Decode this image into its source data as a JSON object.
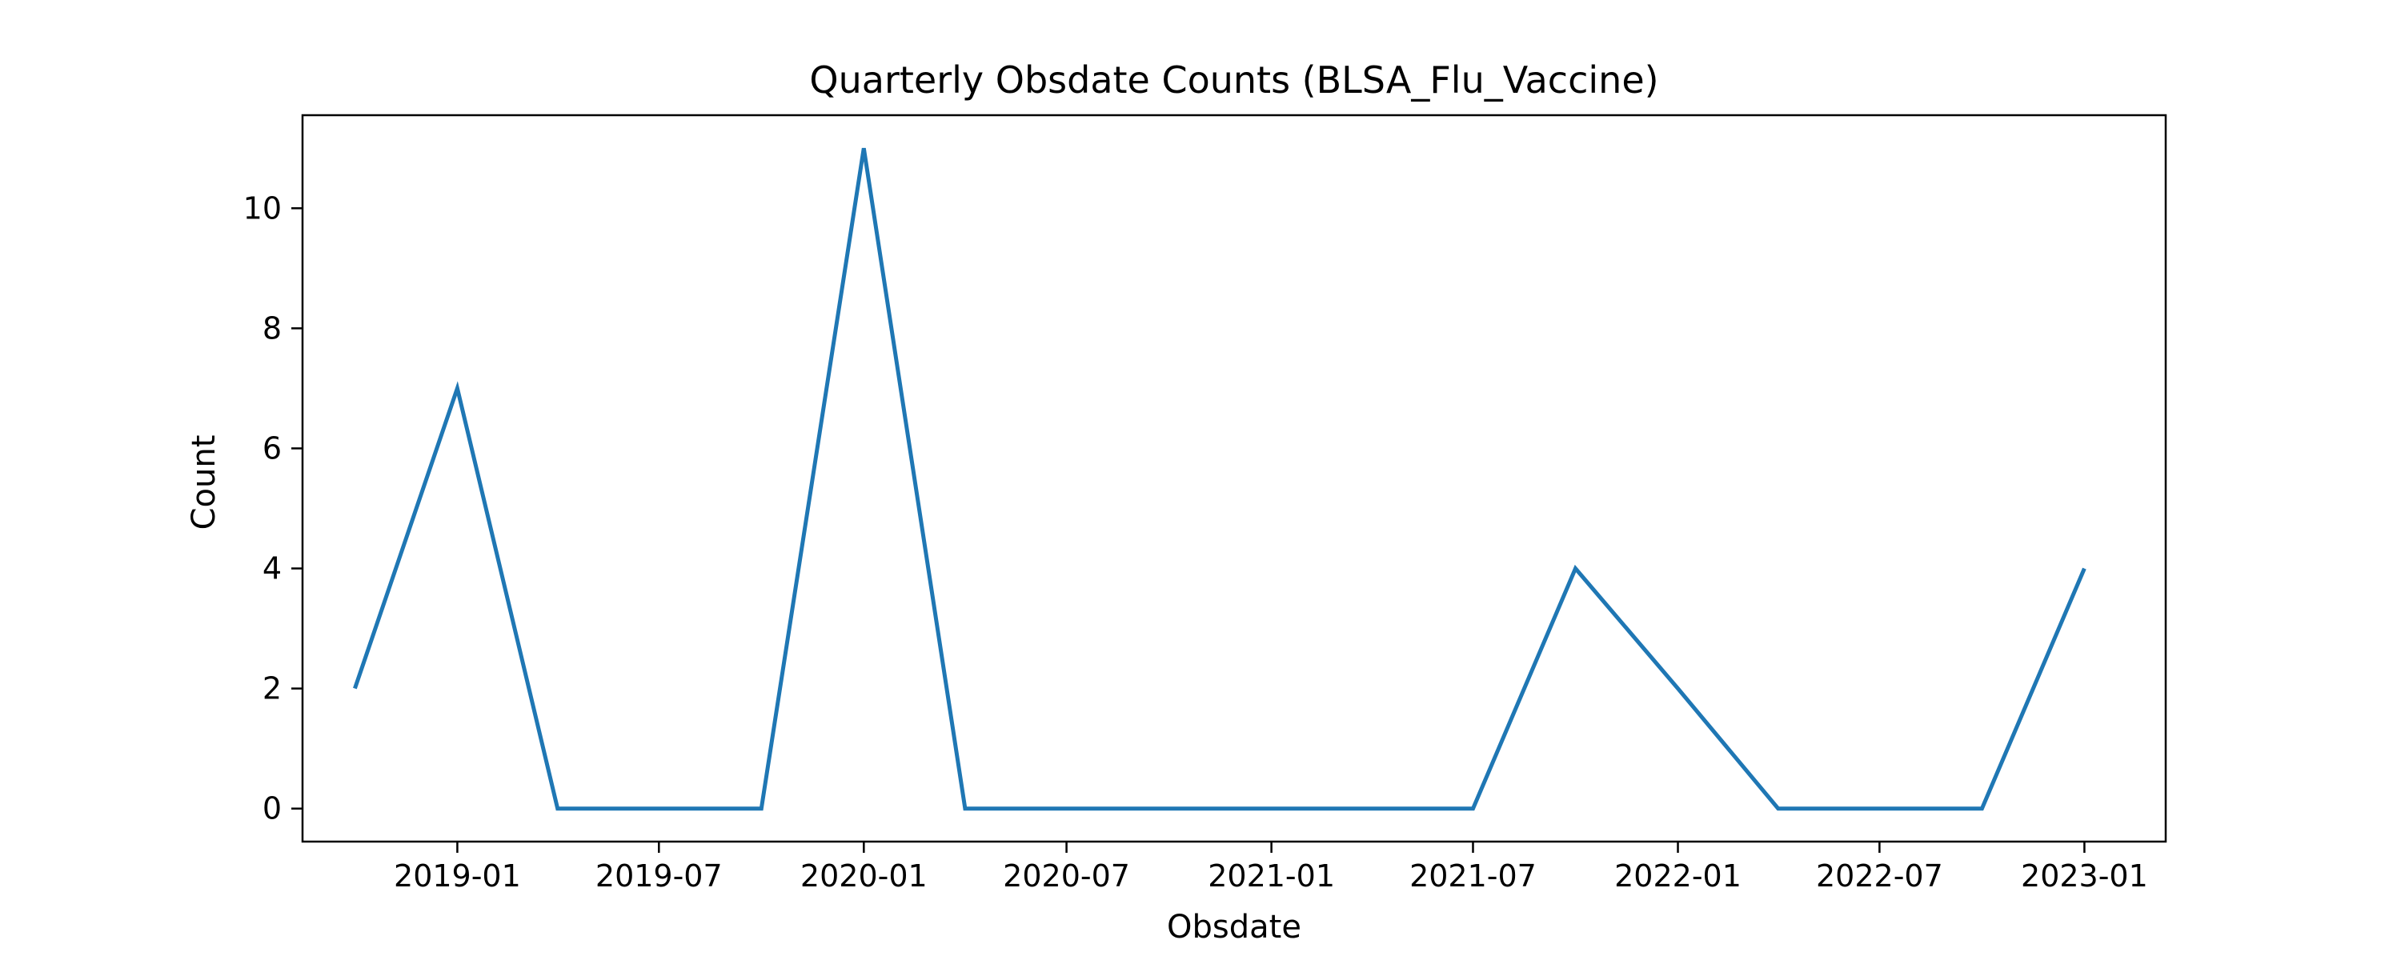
{
  "chart_data": {
    "type": "line",
    "title": "Quarterly Obsdate Counts (BLSA_Flu_Vaccine)",
    "xlabel": "Obsdate",
    "ylabel": "Count",
    "x_ticks": [
      "2019-01",
      "2019-07",
      "2020-01",
      "2020-07",
      "2021-01",
      "2021-07",
      "2022-01",
      "2022-07",
      "2023-01"
    ],
    "y_ticks": [
      0,
      2,
      4,
      6,
      8,
      10
    ],
    "xlim": [
      "2018-08-15",
      "2023-03-15"
    ],
    "ylim": [
      -0.55,
      11.55
    ],
    "grid": false,
    "legend": "none",
    "series": [
      {
        "color": "#1f77b4",
        "x": [
          "2018-10-01",
          "2019-01-01",
          "2019-04-01",
          "2019-07-01",
          "2019-10-01",
          "2020-01-01",
          "2020-04-01",
          "2020-07-01",
          "2020-10-01",
          "2021-01-01",
          "2021-04-01",
          "2021-07-01",
          "2021-10-01",
          "2022-01-01",
          "2022-04-01",
          "2022-07-01",
          "2022-10-01",
          "2023-01-01"
        ],
        "values": [
          2,
          7,
          0,
          0,
          0,
          11,
          0,
          0,
          0,
          0,
          0,
          0,
          4,
          2,
          0,
          0,
          0,
          4
        ]
      }
    ]
  }
}
